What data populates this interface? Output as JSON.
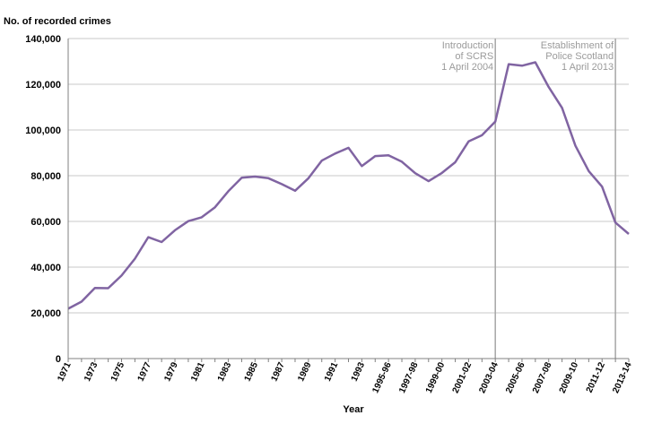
{
  "chart_data": {
    "type": "line",
    "ylabel": "No. of recorded crimes",
    "xlabel": "Year",
    "ylim": [
      0,
      140000
    ],
    "yticks": [
      0,
      20000,
      40000,
      60000,
      80000,
      100000,
      120000,
      140000
    ],
    "ytick_labels": [
      "0",
      "20,000",
      "40,000",
      "60,000",
      "80,000",
      "100,000",
      "120,000",
      "140,000"
    ],
    "grid": true,
    "categories": [
      "1971",
      "1972",
      "1973",
      "1974",
      "1975",
      "1976",
      "1977",
      "1978",
      "1979",
      "1980",
      "1981",
      "1982",
      "1983",
      "1984",
      "1985",
      "1986",
      "1987",
      "1988",
      "1989",
      "1990",
      "1991",
      "1992",
      "1993",
      "1994",
      "1995-96",
      "1996-97",
      "1997-98",
      "1998-99",
      "1999-00",
      "2000-01",
      "2001-02",
      "2002-03",
      "2003-04",
      "2004-05",
      "2005-06",
      "2006-07",
      "2007-08",
      "2008-09",
      "2009-10",
      "2010-11",
      "2011-12",
      "2012-13",
      "2013-14"
    ],
    "x_tick_labels": [
      "1971",
      "1973",
      "1975",
      "1977",
      "1979",
      "1981",
      "1983",
      "1985",
      "1987",
      "1989",
      "1991",
      "1993",
      "1995-96",
      "1997-98",
      "1999-00",
      "2001-02",
      "2003-04",
      "2005-06",
      "2007-08",
      "2009-10",
      "2011-12",
      "2013-14"
    ],
    "series": [
      {
        "color": "#8064a2",
        "values": [
          21800,
          24900,
          30900,
          30800,
          36300,
          43700,
          53100,
          51000,
          56100,
          60100,
          61800,
          66200,
          73200,
          79100,
          79600,
          78900,
          76300,
          73400,
          78900,
          86600,
          89700,
          92200,
          84200,
          88600,
          88900,
          86100,
          81100,
          77600,
          81200,
          85900,
          95000,
          97700,
          103700,
          128800,
          128100,
          129600,
          118800,
          109700,
          93100,
          82000,
          75200,
          59500,
          54500
        ]
      }
    ],
    "annotations": [
      {
        "category": "2003-04",
        "lines": [
          "Introduction",
          "of SCRS",
          "1 April 2004"
        ]
      },
      {
        "category": "2012-13",
        "lines": [
          "Establishment of",
          "Police Scotland",
          "1 April 2013"
        ]
      }
    ]
  }
}
